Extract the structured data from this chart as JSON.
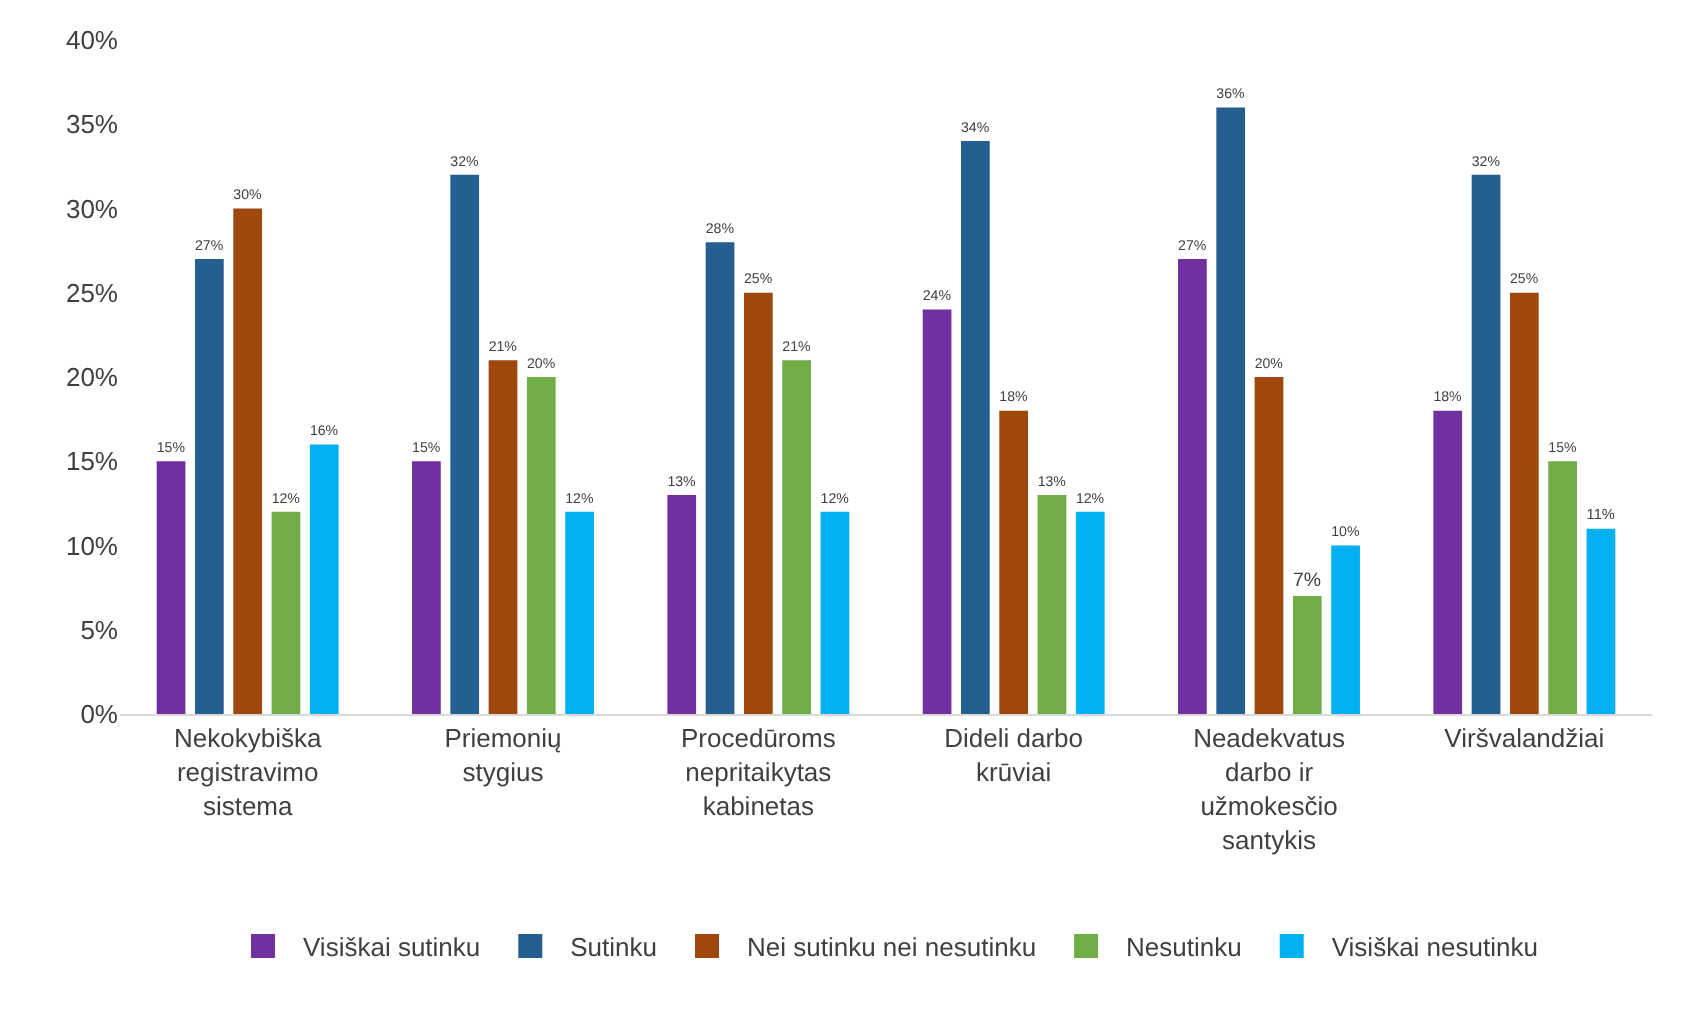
{
  "chart_data": {
    "type": "bar",
    "categories": [
      "Nekokybiška registravimo sistema",
      "Priemonių stygius",
      "Procedūroms nepritaikytas kabinetas",
      "Dideli darbo krūviai",
      "Neadekvatus darbo ir užmokesčio santykis",
      "Viršvalandžiai"
    ],
    "series": [
      {
        "name": "Visiškai sutinku",
        "color": "#7030a0",
        "values": [
          15,
          15,
          13,
          24,
          27,
          18
        ],
        "value_labels": [
          "15%",
          "15%",
          "13%",
          "24%",
          "27%",
          "18%"
        ]
      },
      {
        "name": "Sutinku",
        "color": "#255e91",
        "values": [
          27,
          32,
          28,
          34,
          36,
          32
        ],
        "value_labels": [
          "27%",
          "32%",
          "28%",
          "34%",
          "36%",
          "32%"
        ]
      },
      {
        "name": "Nei sutinku nei nesutinku",
        "color": "#9e480e",
        "values": [
          30,
          21,
          25,
          18,
          20,
          25
        ],
        "value_labels": [
          "30%",
          "21%",
          "25%",
          "18%",
          "20%",
          "25%"
        ]
      },
      {
        "name": "Nesutinku",
        "color": "#70ad47",
        "values": [
          12,
          20,
          21,
          13,
          7,
          15
        ],
        "value_labels": [
          "12%",
          "20%",
          "21%",
          "13%",
          "7%",
          "15%"
        ]
      },
      {
        "name": "Visiškai nesutinku",
        "color": "#00b0f0",
        "values": [
          16,
          12,
          12,
          12,
          10,
          11
        ],
        "value_labels": [
          "16%",
          "12%",
          "12%",
          "12%",
          "10%",
          "11%"
        ]
      }
    ],
    "ylim": [
      0,
      40
    ],
    "yticks": [
      {
        "value": 0,
        "label": "0%"
      },
      {
        "value": 5,
        "label": "5%"
      },
      {
        "value": 10,
        "label": "10%"
      },
      {
        "value": 15,
        "label": "15%"
      },
      {
        "value": 20,
        "label": "20%"
      },
      {
        "value": 25,
        "label": "25%"
      },
      {
        "value": 30,
        "label": "30%"
      },
      {
        "value": 35,
        "label": "35%"
      },
      {
        "value": 40,
        "label": "40%"
      }
    ],
    "grid": false,
    "legend": "bottom"
  }
}
